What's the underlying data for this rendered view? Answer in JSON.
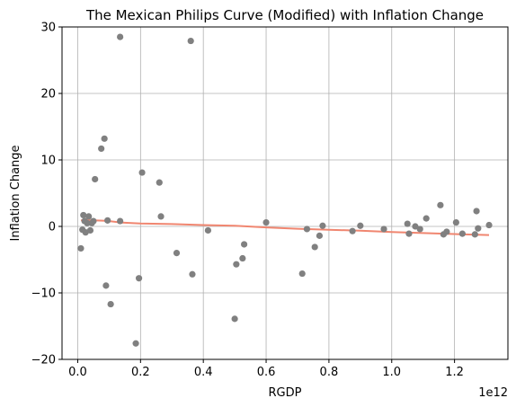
{
  "chart_data": {
    "type": "scatter",
    "title": "The Mexican Philips Curve (Modified) with Inflation Change",
    "xlabel": "RGDP",
    "ylabel": "Inflation Change",
    "x_offset_label": "1e12",
    "x_scale": 1000000000000.0,
    "xlim": [
      -0.05,
      1.37
    ],
    "ylim": [
      -20,
      30
    ],
    "x_ticks": [
      0.0,
      0.2,
      0.4,
      0.6,
      0.8,
      1.0,
      1.2
    ],
    "x_tick_labels": [
      "0.0",
      "0.2",
      "0.4",
      "0.6",
      "0.8",
      "1.0",
      "1.2"
    ],
    "y_ticks": [
      -20,
      -10,
      0,
      10,
      20,
      30
    ],
    "y_tick_labels": [
      "−20",
      "−10",
      "0",
      "10",
      "20",
      "30"
    ],
    "grid": true,
    "colors": {
      "points": "#808080",
      "trend": "#f08670",
      "grid": "#b0b0b0"
    },
    "points": {
      "x": [
        0.01,
        0.015,
        0.018,
        0.022,
        0.025,
        0.03,
        0.035,
        0.04,
        0.045,
        0.05,
        0.055,
        0.075,
        0.085,
        0.09,
        0.095,
        0.105,
        0.135,
        0.135,
        0.185,
        0.195,
        0.205,
        0.26,
        0.265,
        0.315,
        0.36,
        0.365,
        0.415,
        0.5,
        0.505,
        0.525,
        0.53,
        0.6,
        0.715,
        0.73,
        0.755,
        0.77,
        0.78,
        0.875,
        0.9,
        0.975,
        1.05,
        1.055,
        1.075,
        1.09,
        1.11,
        1.155,
        1.165,
        1.175,
        1.205,
        1.225,
        1.265,
        1.27,
        1.275,
        1.31
      ],
      "y": [
        -3.3,
        -0.5,
        1.7,
        0.8,
        -0.9,
        0.5,
        1.5,
        -0.6,
        0.5,
        0.8,
        7.1,
        11.7,
        13.2,
        -8.9,
        0.9,
        -11.7,
        28.5,
        0.8,
        -17.6,
        -7.8,
        8.1,
        6.6,
        1.5,
        -4.0,
        27.9,
        -7.2,
        -0.6,
        -13.9,
        -5.7,
        -4.8,
        -2.7,
        0.6,
        -7.1,
        -0.4,
        -3.1,
        -1.4,
        0.1,
        -0.7,
        0.1,
        -0.4,
        0.4,
        -1.1,
        0.0,
        -0.4,
        1.2,
        3.2,
        -1.2,
        -0.8,
        0.6,
        -1.1,
        -1.2,
        2.3,
        -0.3,
        0.2
      ]
    },
    "trend_line": {
      "x": [
        0.01,
        0.03,
        0.05,
        0.09,
        0.135,
        0.2,
        0.3,
        0.4,
        0.5,
        0.6,
        0.7,
        0.8,
        0.9,
        1.0,
        1.1,
        1.2,
        1.31
      ],
      "y": [
        0.9,
        0.95,
        0.9,
        0.85,
        0.6,
        0.45,
        0.35,
        0.2,
        0.1,
        -0.15,
        -0.35,
        -0.5,
        -0.65,
        -0.85,
        -1.0,
        -1.15,
        -1.3
      ]
    }
  }
}
